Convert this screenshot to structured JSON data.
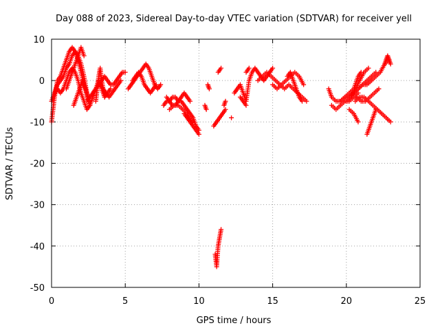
{
  "chart_data": {
    "type": "scatter",
    "title": "Day 088 of 2023, Sidereal Day-to-day VTEC variation (SDTVAR) for receiver yell",
    "xlabel": "GPS time / hours",
    "ylabel": "SDTVAR / TECUs",
    "xlim": [
      0,
      25
    ],
    "ylim": [
      -50,
      10
    ],
    "xticks": [
      0,
      5,
      10,
      15,
      20,
      25
    ],
    "yticks": [
      -50,
      -40,
      -30,
      -20,
      -10,
      0,
      10
    ],
    "grid": true,
    "marker": "plus",
    "color": "#ff0000",
    "series": [
      {
        "name": "SDTVAR",
        "segments": [
          {
            "x": [
              0.0,
              0.1,
              0.2,
              0.3,
              0.4,
              0.6,
              0.8,
              1.0,
              1.2,
              1.4,
              1.6,
              1.8,
              2.0,
              2.2,
              2.4
            ],
            "y": [
              -10,
              -7,
              -4,
              -2,
              0,
              1,
              3,
              5,
              7,
              8,
              7,
              5,
              2,
              -1,
              -3
            ]
          },
          {
            "x": [
              0.0,
              0.2,
              0.4,
              0.6,
              0.8,
              1.0,
              1.2,
              1.4,
              1.6,
              1.8,
              2.0,
              2.2,
              2.4,
              2.6
            ],
            "y": [
              -5,
              -3,
              -1,
              0,
              1,
              3,
              4,
              6,
              7,
              6,
              4,
              1,
              -3,
              -6
            ]
          },
          {
            "x": [
              0.2,
              0.4,
              0.6,
              0.8,
              1.0,
              1.2,
              1.4,
              1.6,
              1.8,
              2.0,
              2.2,
              2.4,
              2.6
            ],
            "y": [
              -3,
              -2,
              -3,
              -2,
              0,
              2,
              3,
              2,
              0,
              -3,
              -5,
              -7,
              -6
            ]
          },
          {
            "x": [
              1.0,
              1.2,
              1.4,
              1.6,
              1.8,
              2.0,
              2.2
            ],
            "y": [
              -2,
              0,
              2,
              4,
              6,
              8,
              6
            ]
          },
          {
            "x": [
              1.5,
              1.7,
              1.9,
              2.1,
              2.3,
              2.5
            ],
            "y": [
              -6,
              -4,
              -2,
              0,
              -2,
              -5
            ]
          },
          {
            "x": [
              2.4,
              2.6,
              2.8,
              3.0,
              3.2,
              3.4,
              3.6,
              3.8,
              4.0,
              4.2,
              4.4,
              4.6,
              4.8,
              5.0
            ],
            "y": [
              -5,
              -4,
              -3,
              -2,
              -1,
              0,
              1,
              0,
              -1,
              -1,
              0,
              1,
              2,
              2
            ]
          },
          {
            "x": [
              2.6,
              2.8,
              3.0,
              3.2,
              3.4,
              3.6
            ],
            "y": [
              -6,
              -4,
              -2,
              0,
              -2,
              -4
            ]
          },
          {
            "x": [
              3.0,
              3.1,
              3.2,
              3.3,
              3.4,
              3.5,
              3.6,
              3.8,
              4.0
            ],
            "y": [
              -5,
              -2,
              1,
              3,
              0,
              -2,
              -4,
              -3,
              -2
            ]
          },
          {
            "x": [
              3.3,
              3.5,
              3.7,
              3.9,
              4.1,
              4.3,
              4.5,
              4.7
            ],
            "y": [
              -1,
              -2,
              -3,
              -4,
              -3,
              -2,
              -1,
              0
            ]
          },
          {
            "x": [
              5.2,
              5.4,
              5.6,
              5.8,
              6.0,
              6.2,
              6.4,
              6.6,
              6.8,
              7.0,
              7.2,
              7.4
            ],
            "y": [
              -2,
              -1,
              0,
              1,
              2,
              3,
              4,
              3,
              1,
              -1,
              -2,
              -1
            ]
          },
          {
            "x": [
              5.5,
              5.7,
              5.9,
              6.1,
              6.3,
              6.5,
              6.7,
              6.9,
              7.1
            ],
            "y": [
              0,
              1,
              2,
              1,
              -1,
              -2,
              -3,
              -2,
              -1
            ]
          },
          {
            "x": [
              7.6,
              7.8,
              8.0,
              8.2,
              8.4,
              8.6,
              8.8,
              9.0,
              9.2,
              9.4,
              9.6,
              9.8,
              10.0
            ],
            "y": [
              -6,
              -5,
              -5,
              -4,
              -4,
              -5,
              -5,
              -6,
              -7,
              -8,
              -9,
              -11,
              -12
            ]
          },
          {
            "x": [
              7.8,
              8.0,
              8.2,
              8.4,
              8.6,
              8.8,
              9.0,
              9.2,
              9.4
            ],
            "y": [
              -4,
              -5,
              -6,
              -6,
              -5,
              -4,
              -3,
              -4,
              -5
            ]
          },
          {
            "x": [
              8.0,
              8.3,
              8.6,
              8.9,
              9.2,
              9.5
            ],
            "y": [
              -7,
              -6,
              -6,
              -7,
              -8,
              -10
            ]
          },
          {
            "x": [
              9.0,
              9.2,
              9.4,
              9.6,
              9.8,
              10.0
            ],
            "y": [
              -8,
              -9,
              -10,
              -11,
              -12,
              -13
            ]
          },
          {
            "x": [
              10.4,
              10.5
            ],
            "y": [
              -6,
              -7
            ]
          },
          {
            "x": [
              10.6,
              10.7
            ],
            "y": [
              -1,
              -2
            ]
          },
          {
            "x": [
              11.0,
              11.2,
              11.4,
              11.6,
              11.8
            ],
            "y": [
              -11,
              -10,
              -9,
              -8,
              -7
            ]
          },
          {
            "x": [
              11.3,
              11.5
            ],
            "y": [
              2,
              3
            ]
          },
          {
            "x": [
              11.7,
              11.8
            ],
            "y": [
              -6,
              -5
            ]
          },
          {
            "x": [
              12.2
            ],
            "y": [
              -9
            ]
          },
          {
            "x": [
              11.1,
              11.2,
              11.3,
              11.4,
              11.5
            ],
            "y": [
              -42,
              -45,
              -40,
              -38,
              -36
            ]
          },
          {
            "x": [
              12.4,
              12.6,
              12.8,
              13.0,
              13.2,
              13.4,
              13.6,
              13.8,
              14.0,
              14.2,
              14.4,
              14.6,
              14.8,
              15.0
            ],
            "y": [
              -3,
              -2,
              -1,
              -3,
              -5,
              0,
              2,
              3,
              2,
              1,
              0,
              1,
              2,
              3
            ]
          },
          {
            "x": [
              12.8,
              13.0,
              13.2
            ],
            "y": [
              -4,
              -5,
              -6
            ]
          },
          {
            "x": [
              13.2,
              13.4
            ],
            "y": [
              2,
              3
            ]
          },
          {
            "x": [
              14.0,
              14.3,
              14.6,
              14.9,
              15.2,
              15.5,
              15.8,
              16.1,
              16.4,
              16.7,
              17.0,
              17.3
            ],
            "y": [
              0,
              1,
              2,
              1,
              0,
              -1,
              -2,
              -1,
              -2,
              -3,
              -4,
              -5
            ]
          },
          {
            "x": [
              15.0,
              15.3,
              15.6,
              15.9,
              16.2,
              16.5,
              16.8,
              17.1
            ],
            "y": [
              -1,
              -2,
              -1,
              0,
              1,
              2,
              1,
              -1
            ]
          },
          {
            "x": [
              16.0,
              16.2,
              16.4,
              16.6,
              16.8,
              17.0
            ],
            "y": [
              1,
              2,
              0,
              -2,
              -4,
              -5
            ]
          },
          {
            "x": [
              18.8,
              19.0,
              19.3,
              19.6,
              19.9,
              20.2,
              20.5,
              20.8,
              21.1,
              21.4,
              21.7,
              22.0
            ],
            "y": [
              -2,
              -4,
              -5,
              -5,
              -4,
              -4,
              -3,
              -2,
              -1,
              0,
              1,
              2
            ]
          },
          {
            "x": [
              19.0,
              19.3,
              19.6,
              19.9,
              20.2,
              20.5,
              20.8
            ],
            "y": [
              -6,
              -7,
              -6,
              -5,
              -5,
              -4,
              -3
            ]
          },
          {
            "x": [
              20.2,
              20.5,
              20.8,
              21.1,
              21.4,
              21.7,
              22.0,
              22.3,
              22.6,
              22.9
            ],
            "y": [
              -4,
              -3,
              -2,
              -1,
              -1,
              0,
              1,
              2,
              4,
              5
            ]
          },
          {
            "x": [
              20.0,
              20.3,
              20.6,
              20.9,
              21.2,
              21.5
            ],
            "y": [
              -5,
              -4,
              -2,
              0,
              2,
              3
            ]
          },
          {
            "x": [
              19.6,
              19.9,
              20.2,
              20.5,
              20.8,
              21.0
            ],
            "y": [
              -5,
              -4,
              -3,
              -2,
              1,
              2
            ]
          },
          {
            "x": [
              20.4,
              20.7,
              21.0,
              21.3,
              21.6,
              21.9,
              22.2
            ],
            "y": [
              -4,
              -4,
              -5,
              -5,
              -4,
              -3,
              -2
            ]
          },
          {
            "x": [
              20.6,
              20.9,
              21.2,
              21.5,
              21.8,
              22.1,
              22.4,
              22.7,
              23.0
            ],
            "y": [
              -5,
              -4,
              -4,
              -5,
              -6,
              -7,
              -8,
              -9,
              -10
            ]
          },
          {
            "x": [
              20.2,
              20.5,
              20.8
            ],
            "y": [
              -7,
              -8,
              -10
            ]
          },
          {
            "x": [
              21.4,
              21.6,
              21.8,
              22.0
            ],
            "y": [
              -13,
              -11,
              -9,
              -7
            ]
          },
          {
            "x": [
              22.6,
              22.7,
              22.8,
              22.9,
              23.0
            ],
            "y": [
              4,
              5,
              6,
              5,
              4
            ]
          }
        ]
      }
    ]
  }
}
